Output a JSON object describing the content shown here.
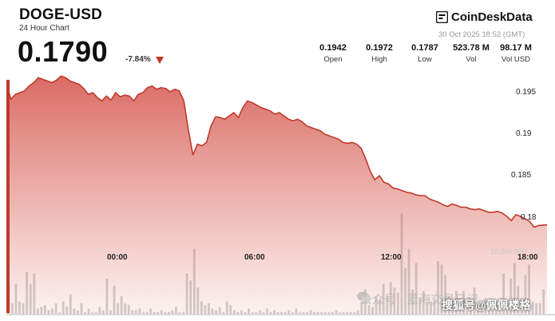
{
  "header": {
    "pair": "DOGE-USD",
    "subtitle": "24 Hour Chart",
    "price": "0.1790",
    "change": "-7.84%",
    "brand": "CoinDeskData",
    "timestamp": "30 Oct 2025 18:52 (GMT)"
  },
  "stats": [
    {
      "value": "0.1942",
      "label": "Open"
    },
    {
      "value": "0.1972",
      "label": "High"
    },
    {
      "value": "0.1787",
      "label": "Low"
    },
    {
      "value": "523.78 M",
      "label": "Vol"
    },
    {
      "value": "98.17 M",
      "label": "Vol USD"
    }
  ],
  "watermark": {
    "wechat": "公众号 · 蓝海交易日记",
    "sohu": "搜狐号@佩佩楼格"
  },
  "colors": {
    "accent": "#c0392b",
    "area_top": "#d65a52",
    "volume": "#6a6a6a"
  },
  "chart_data": {
    "type": "area",
    "title": "",
    "xlabel": "",
    "ylabel": "",
    "ylim": [
      0.1775,
      0.1975
    ],
    "y_ticks": [
      0.195,
      0.19,
      0.185,
      0.18
    ],
    "y_tick_labels": [
      "0.195",
      "0.19",
      "0.185",
      "0.18"
    ],
    "x_ticks": [
      {
        "hour": 0,
        "label": "00:00"
      },
      {
        "hour": 6,
        "label": "06:00"
      },
      {
        "hour": 12,
        "label": "12:00"
      },
      {
        "hour": 18,
        "label": "18:00"
      }
    ],
    "x_range": [
      -4.53,
      19.17
    ],
    "series": [
      {
        "values_x": [
          -4.53,
          -4.4,
          -4.2,
          -4.0,
          -3.8,
          -3.6,
          -3.4,
          -3.2,
          -3.0,
          -2.8,
          -2.6,
          -2.4,
          -2.2,
          -2.0,
          -1.8,
          -1.6,
          -1.4,
          -1.2,
          -1.0,
          -0.8,
          -0.6,
          -0.4,
          -0.2,
          0.0,
          0.2,
          0.4,
          0.6,
          0.8,
          1.0,
          1.2,
          1.4,
          1.6,
          1.8,
          2.0,
          2.2,
          2.4,
          2.6,
          2.8,
          3.0,
          3.2,
          3.4,
          3.6,
          3.8,
          4.0,
          4.2,
          4.4,
          4.6,
          4.8,
          5.0,
          5.2,
          5.4,
          5.6,
          5.8,
          6.0,
          6.2,
          6.4,
          6.6,
          6.8,
          7.0,
          7.2,
          7.4,
          7.6,
          7.8,
          8.0,
          8.2,
          8.4,
          8.6,
          8.8,
          9.0,
          9.2,
          9.4,
          9.6,
          9.8,
          10.0,
          10.2,
          10.4,
          10.6,
          10.8,
          11.0,
          11.2,
          11.4,
          11.6,
          11.8,
          12.0,
          12.2,
          12.4,
          12.6,
          12.8,
          13.0,
          13.2,
          13.4,
          13.6,
          13.8,
          14.0,
          14.2,
          14.4,
          14.6,
          14.8,
          15.0,
          15.2,
          15.4,
          15.6,
          15.8,
          16.0,
          16.2,
          16.4,
          16.6,
          16.8,
          17.0,
          17.2,
          17.4,
          17.6,
          17.8,
          18.0,
          18.2,
          18.4,
          18.6,
          18.8,
          19.17
        ],
        "values_y": [
          0.1955,
          0.1942,
          0.1948,
          0.195,
          0.1952,
          0.1958,
          0.1962,
          0.1968,
          0.1966,
          0.1964,
          0.1962,
          0.1965,
          0.197,
          0.1968,
          0.1964,
          0.1962,
          0.196,
          0.1955,
          0.1948,
          0.195,
          0.1944,
          0.194,
          0.1946,
          0.1941,
          0.195,
          0.1945,
          0.1947,
          0.1946,
          0.194,
          0.1948,
          0.195,
          0.1956,
          0.1958,
          0.1954,
          0.1956,
          0.1955,
          0.1951,
          0.1954,
          0.1952,
          0.194,
          0.1905,
          0.1875,
          0.1888,
          0.1886,
          0.189,
          0.191,
          0.1921,
          0.192,
          0.1918,
          0.1922,
          0.1926,
          0.192,
          0.1932,
          0.194,
          0.1938,
          0.1935,
          0.1932,
          0.193,
          0.1928,
          0.1924,
          0.1926,
          0.1922,
          0.1918,
          0.1916,
          0.1918,
          0.1915,
          0.191,
          0.1908,
          0.1906,
          0.1904,
          0.19,
          0.1898,
          0.1896,
          0.1894,
          0.189,
          0.1889,
          0.189,
          0.1888,
          0.1883,
          0.187,
          0.1855,
          0.1845,
          0.185,
          0.1842,
          0.184,
          0.1835,
          0.1834,
          0.1832,
          0.183,
          0.1829,
          0.1827,
          0.1826,
          0.1826,
          0.1822,
          0.182,
          0.1818,
          0.1815,
          0.1813,
          0.1816,
          0.1814,
          0.1812,
          0.1812,
          0.181,
          0.1809,
          0.181,
          0.1808,
          0.1806,
          0.1806,
          0.1807,
          0.1805,
          0.1801,
          0.1796,
          0.1803,
          0.1801,
          0.1798,
          0.1795,
          0.1788,
          0.179,
          0.1791
        ]
      }
    ],
    "volume": {
      "unit_label": "10,000,000",
      "unit_value": 10000000,
      "bars_hours": [
        -4.5,
        -4.34,
        -4.18,
        -4.02,
        -3.86,
        -3.7,
        -3.54,
        -3.38,
        -3.22,
        -3.06,
        -2.9,
        -2.74,
        -2.58,
        -2.42,
        -2.26,
        -2.1,
        -1.94,
        -1.78,
        -1.62,
        -1.46,
        -1.3,
        -1.14,
        -0.98,
        -0.82,
        -0.66,
        -0.5,
        -0.34,
        -0.18,
        -0.02,
        0.14,
        0.3,
        0.46,
        0.62,
        0.78,
        0.94,
        1.1,
        1.26,
        1.42,
        1.58,
        1.74,
        1.9,
        2.06,
        2.22,
        2.38,
        2.54,
        2.7,
        2.86,
        3.02,
        3.18,
        3.34,
        3.5,
        3.66,
        3.82,
        3.98,
        4.14,
        4.3,
        4.46,
        4.62,
        4.78,
        4.94,
        5.1,
        5.26,
        5.42,
        5.58,
        5.74,
        5.9,
        6.06,
        6.22,
        6.38,
        6.54,
        6.7,
        6.86,
        7.02,
        7.18,
        7.34,
        7.5,
        7.66,
        7.82,
        7.98,
        8.14,
        8.3,
        8.46,
        8.62,
        8.78,
        8.94,
        9.1,
        9.26,
        9.42,
        9.58,
        9.74,
        9.9,
        10.06,
        10.22,
        10.38,
        10.54,
        10.7,
        10.86,
        11.02,
        11.18,
        11.34,
        11.5,
        11.66,
        11.82,
        11.98,
        12.14,
        12.3,
        12.46,
        12.62,
        12.78,
        12.94,
        13.1,
        13.26,
        13.42,
        13.58,
        13.74,
        13.9,
        14.06,
        14.22,
        14.38,
        14.54,
        14.7,
        14.86,
        15.02,
        15.18,
        15.34,
        15.5,
        15.66,
        15.82,
        15.98,
        16.14,
        16.3,
        16.46,
        16.62,
        16.78,
        16.94,
        17.1,
        17.26,
        17.42,
        17.58,
        17.74,
        17.9,
        18.06,
        18.22,
        18.38,
        18.54,
        18.7,
        18.86,
        19.02
      ],
      "bars_values": [
        8.5,
        3.0,
        8.5,
        3.5,
        3.0,
        12.0,
        8.5,
        11.5,
        1.5,
        2.0,
        2.5,
        1.0,
        1.5,
        3.0,
        0.5,
        3.5,
        2.0,
        5.5,
        1.5,
        1.0,
        3.0,
        0.5,
        1.5,
        0.5,
        0.5,
        2.0,
        1.0,
        10.0,
        1.0,
        8.0,
        3.0,
        5.0,
        3.0,
        2.5,
        1.0,
        1.0,
        1.5,
        0.5,
        0.5,
        1.5,
        0.5,
        0.5,
        1.0,
        0.5,
        0.5,
        1.0,
        2.0,
        0.5,
        0.5,
        11.5,
        9.5,
        18.5,
        7.5,
        3.5,
        2.5,
        3.0,
        1.5,
        1.0,
        2.0,
        0.5,
        3.5,
        2.5,
        1.0,
        0.5,
        1.0,
        0.5,
        1.5,
        0.5,
        0.5,
        1.0,
        0.5,
        1.5,
        0.5,
        1.0,
        0.5,
        0.5,
        0.5,
        1.0,
        0.5,
        1.5,
        0.5,
        0.5,
        0.5,
        1.0,
        0.5,
        0.5,
        0.5,
        0.5,
        0.5,
        0.5,
        1.0,
        0.5,
        0.5,
        0.5,
        0.5,
        0.5,
        1.0,
        3.5,
        7.0,
        2.5,
        2.0,
        5.0,
        4.0,
        8.5,
        5.0,
        9.0,
        7.5,
        6.0,
        28.5,
        13.0,
        18.5,
        7.0,
        14.5,
        4.5,
        6.5,
        3.0,
        3.5,
        4.0,
        15.0,
        14.0,
        11.0,
        5.0,
        3.5,
        6.5,
        4.0,
        6.5,
        3.0,
        2.0,
        7.5,
        2.5,
        3.0,
        4.5,
        1.5,
        1.5,
        3.0,
        1.0,
        11.5,
        2.5,
        10.0,
        14.5,
        8.0,
        4.5,
        11.0,
        14.0,
        3.5,
        3.0,
        3.0,
        7.0,
        8.5,
        5.5
      ]
    }
  }
}
